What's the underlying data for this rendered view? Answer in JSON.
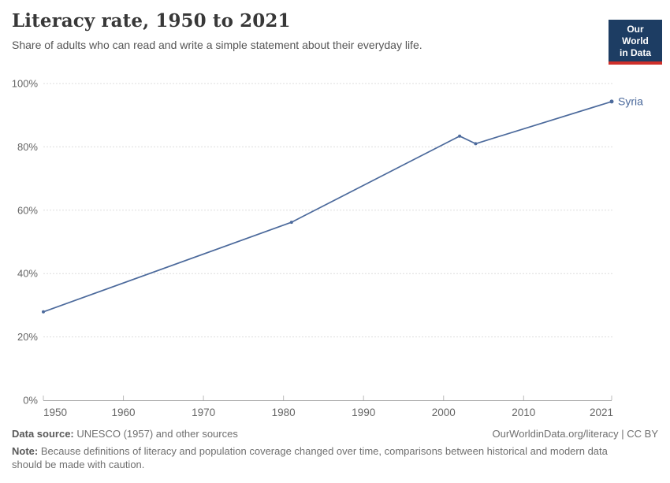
{
  "header": {
    "title": "Literacy rate, 1950 to 2021",
    "subtitle": "Share of adults who can read and write a simple statement about their everyday life.",
    "logo": {
      "line1": "Our World",
      "line2": "in Data",
      "bg_color": "#1d3d63",
      "accent_color": "#cf2f2a"
    }
  },
  "chart_data": {
    "type": "line",
    "title": "Literacy rate, 1950 to 2021",
    "xlabel": "",
    "ylabel": "",
    "xlim": [
      1950,
      2021
    ],
    "ylim": [
      0,
      100
    ],
    "x_ticks": [
      1950,
      1960,
      1970,
      1980,
      1990,
      2000,
      2010,
      2021
    ],
    "y_ticks": [
      0,
      20,
      40,
      60,
      80,
      100
    ],
    "y_tick_suffix": "%",
    "grid": "horizontal-dashed",
    "legend_position": "end-of-line-label",
    "series": [
      {
        "name": "Syria",
        "color": "#4C6A9C",
        "points": [
          [
            1950,
            27.9
          ],
          [
            1981,
            56.2
          ],
          [
            2002,
            83.4
          ],
          [
            2004,
            81.0
          ],
          [
            2021,
            94.3
          ]
        ]
      }
    ]
  },
  "footer": {
    "datasource_label": "Data source:",
    "datasource_value": " UNESCO (1957) and other sources",
    "link": "OurWorldinData.org/literacy | CC BY",
    "note_label": "Note:",
    "note_text": " Because definitions of literacy and population coverage changed over time, comparisons between historical and modern data should be made with caution."
  }
}
